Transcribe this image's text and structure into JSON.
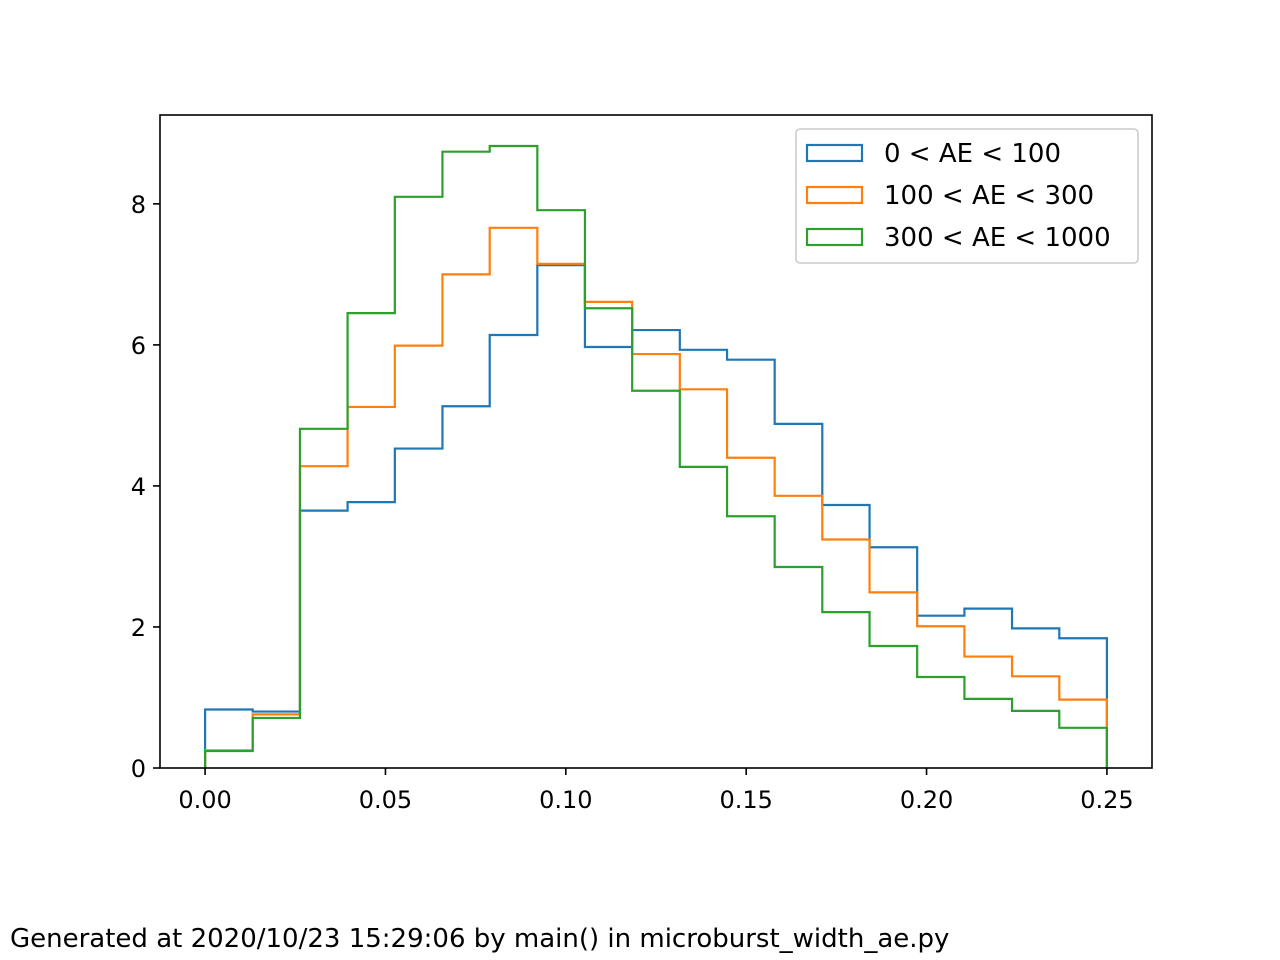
{
  "chart_data": {
    "type": "histogram",
    "bin_edges": [
      0.0,
      0.0132,
      0.0263,
      0.0395,
      0.0526,
      0.0658,
      0.0789,
      0.0921,
      0.1053,
      0.1184,
      0.1316,
      0.1447,
      0.1579,
      0.1711,
      0.1842,
      0.1974,
      0.2105,
      0.2237,
      0.2368,
      0.25
    ],
    "series": [
      {
        "name": "0 < AE < 100",
        "color": "#1f77b4",
        "values": [
          0.83,
          0.8,
          3.65,
          3.77,
          4.53,
          5.13,
          6.14,
          7.13,
          5.97,
          6.21,
          5.93,
          5.79,
          4.88,
          3.73,
          3.13,
          2.16,
          2.26,
          1.98,
          1.84
        ]
      },
      {
        "name": "100 < AE < 300",
        "color": "#ff7f0e",
        "values": [
          0.25,
          0.76,
          4.28,
          5.12,
          5.99,
          7.0,
          7.66,
          7.15,
          6.61,
          5.87,
          5.37,
          4.4,
          3.86,
          3.24,
          2.49,
          2.01,
          1.58,
          1.3,
          0.97
        ]
      },
      {
        "name": "300 < AE < 1000",
        "color": "#2ca02c",
        "values": [
          0.24,
          0.71,
          4.81,
          6.45,
          8.1,
          8.74,
          8.82,
          7.91,
          6.52,
          5.35,
          4.27,
          3.57,
          2.85,
          2.21,
          1.73,
          1.29,
          0.98,
          0.81,
          0.57
        ]
      }
    ],
    "xlim": [
      -0.0125,
      0.2625
    ],
    "ylim": [
      0,
      9.26
    ],
    "xticks": [
      "0.00",
      "0.05",
      "0.10",
      "0.15",
      "0.20",
      "0.25"
    ],
    "yticks": [
      "0",
      "2",
      "4",
      "6",
      "8"
    ],
    "legend_position": "upper right",
    "grid": false
  },
  "footer_text": "Generated at 2020/10/23 15:29:06 by main() in microburst_width_ae.py"
}
